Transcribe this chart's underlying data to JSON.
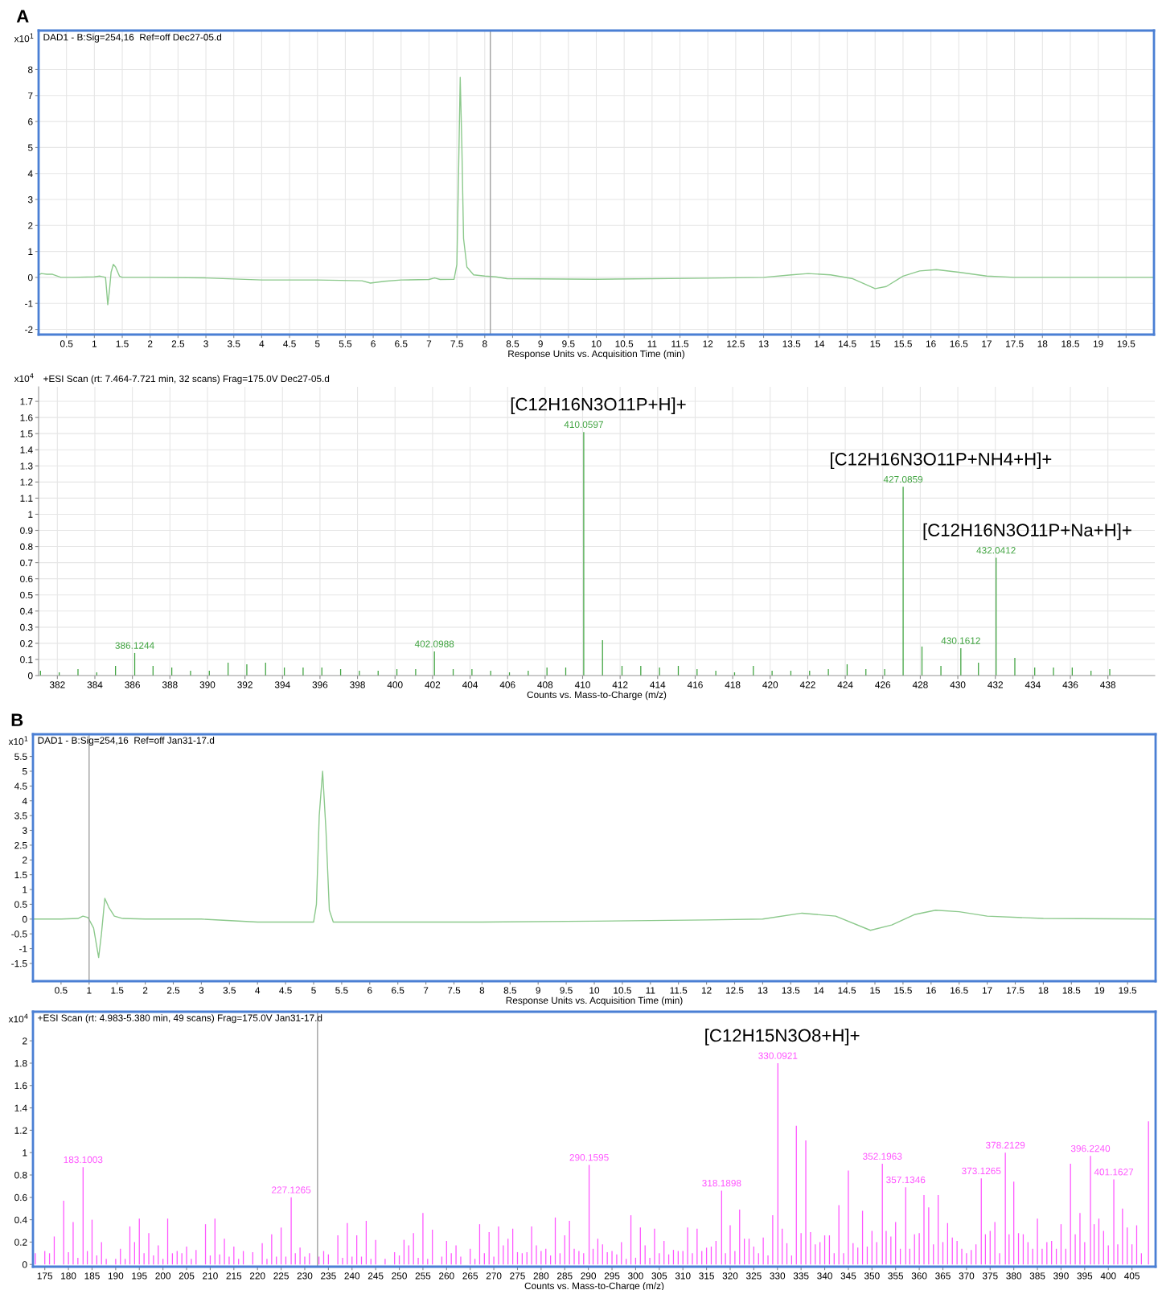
{
  "chart_data": [
    {
      "type": "line",
      "title": "DAD1 - B:Sig=254,16  Ref=off Dec27-05.d",
      "xlabel": "Response Units vs. Acquisition Time (min)",
      "ylabel": "x10$^{1}$",
      "annotations": [
        "A"
      ],
      "series": [
        {
          "color": "#8cc98c",
          "x": [
            0,
            0.05,
            0.15,
            0.25,
            0.4,
            0.6,
            1.0,
            1.1,
            1.2,
            1.22,
            1.24,
            1.27,
            1.3,
            1.34,
            1.38,
            1.45,
            1.5,
            2,
            3,
            4,
            5,
            5.8,
            5.95,
            6.2,
            6.5,
            7.0,
            7.1,
            7.2,
            7.45,
            7.5,
            7.53,
            7.56,
            7.59,
            7.62,
            7.68,
            7.8,
            8.0,
            8.2,
            8.4,
            10,
            12,
            13,
            13.5,
            13.8,
            14.2,
            14.6,
            15,
            15.2,
            15.5,
            15.8,
            16.1,
            16.5,
            17,
            17.5,
            20
          ],
          "values": [
            0.1,
            0.15,
            0.12,
            0.12,
            0.0,
            0.0,
            0.02,
            0.05,
            0.0,
            -0.5,
            -1.05,
            -0.5,
            0.2,
            0.5,
            0.4,
            0.05,
            0.0,
            0.0,
            -0.02,
            -0.1,
            -0.1,
            -0.13,
            -0.22,
            -0.15,
            -0.1,
            -0.08,
            -0.02,
            -0.08,
            -0.07,
            0.5,
            4,
            7.7,
            5,
            1.5,
            0.4,
            0.1,
            0.05,
            0.02,
            -0.05,
            -0.07,
            -0.03,
            0.0,
            0.1,
            0.15,
            0.1,
            -0.05,
            -0.43,
            -0.35,
            0.05,
            0.25,
            0.3,
            0.2,
            0.05,
            0.0,
            0.0
          ]
        }
      ],
      "xlim": [
        0,
        20
      ],
      "ylim": [
        -2.2,
        9.5
      ],
      "xticks": [
        0.5,
        1,
        1.5,
        2,
        2.5,
        3,
        3.5,
        4,
        4.5,
        5,
        5.5,
        6,
        6.5,
        7,
        7.5,
        8,
        8.5,
        9,
        9.5,
        10,
        10.5,
        11,
        11.5,
        12,
        12.5,
        13,
        13.5,
        14,
        14.5,
        15,
        15.5,
        16,
        16.5,
        17,
        17.5,
        18,
        18.5,
        19,
        19.5
      ],
      "yticks": [
        -2,
        -1,
        0,
        1,
        2,
        3,
        4,
        5,
        6,
        7,
        8
      ],
      "grid": true,
      "ref_lines": [
        {
          "axis": "x",
          "value": 8.1,
          "color": "#a0a0a0"
        }
      ]
    },
    {
      "type": "bar",
      "title": "+ESI Scan (rt: 7.464-7.721 min, 32 scans) Frag=175.0V Dec27-05.d",
      "xlabel": "Counts vs. Mass-to-Charge (m/z)",
      "ylabel": "x10$^{4}$",
      "annotations": [
        {
          "text": "386.1244",
          "x": 386.1244,
          "y": 0.14
        },
        {
          "text": "402.0988",
          "x": 402.0988,
          "y": 0.15
        },
        {
          "text": "410.0597",
          "x": 410.0597,
          "y": 1.51
        },
        {
          "text": "[C12H16N3O11P+H]+",
          "x": 410.0597,
          "y": 1.51
        },
        {
          "text": "427.0859",
          "x": 427.0859,
          "y": 1.17
        },
        {
          "text": "[C12H16N3O11P+NH4+H]+",
          "x": 427.0859,
          "y": 1.17
        },
        {
          "text": "430.1612",
          "x": 430.1612,
          "y": 0.17
        },
        {
          "text": "432.0412",
          "x": 432.0412,
          "y": 0.73
        },
        {
          "text": "[C12H16N3O11P+Na+H]+",
          "x": 432.0412,
          "y": 0.73
        }
      ],
      "series": [
        {
          "color": "#3fa33f",
          "x": [
            381.1,
            382.1,
            383.1,
            384.1,
            385.1,
            386.1244,
            387.1,
            388.1,
            389.1,
            390.1,
            391.1,
            392.1,
            393.1,
            394.1,
            395.1,
            396.1,
            397.1,
            398.1,
            399.1,
            400.1,
            401.1,
            402.0988,
            403.1,
            404.1,
            405.1,
            406.1,
            407.1,
            408.1,
            409.1,
            410.0597,
            411.06,
            412.1,
            413.1,
            414.1,
            415.1,
            416.1,
            417.1,
            418.1,
            419.1,
            420.1,
            421.1,
            422.1,
            423.1,
            424.1,
            425.1,
            426.1,
            427.0859,
            428.09,
            429.1,
            430.1612,
            431.1,
            432.0412,
            433.04,
            434.1,
            435.1,
            436.1,
            437.1,
            438.1
          ],
          "values": [
            0.03,
            0.02,
            0.04,
            0.02,
            0.06,
            0.14,
            0.06,
            0.05,
            0.03,
            0.03,
            0.08,
            0.07,
            0.08,
            0.05,
            0.05,
            0.05,
            0.04,
            0.03,
            0.03,
            0.04,
            0.04,
            0.15,
            0.04,
            0.04,
            0.03,
            0.02,
            0.03,
            0.05,
            0.05,
            1.51,
            0.22,
            0.06,
            0.06,
            0.05,
            0.06,
            0.04,
            0.03,
            0.02,
            0.06,
            0.03,
            0.03,
            0.03,
            0.04,
            0.07,
            0.04,
            0.04,
            1.17,
            0.18,
            0.06,
            0.17,
            0.08,
            0.73,
            0.11,
            0.05,
            0.05,
            0.05,
            0.03,
            0.04
          ]
        }
      ],
      "xlim": [
        381.0,
        440.5
      ],
      "ylim": [
        0,
        1.79
      ],
      "xticks": [
        382,
        384,
        386,
        388,
        390,
        392,
        394,
        396,
        398,
        400,
        402,
        404,
        406,
        408,
        410,
        412,
        414,
        416,
        418,
        420,
        422,
        424,
        426,
        428,
        430,
        432,
        434,
        436,
        438
      ],
      "yticks": [
        0,
        0.1,
        0.2,
        0.3,
        0.4,
        0.5,
        0.6,
        0.7,
        0.8,
        0.9,
        1,
        1.1,
        1.2,
        1.3,
        1.4,
        1.5,
        1.6,
        1.7
      ],
      "grid": true
    },
    {
      "type": "line",
      "title": "DAD1 - B:Sig=254,16  Ref=off Jan31-17.d",
      "xlabel": "Response Units vs. Acquisition Time (min)",
      "ylabel": "x10$^{1}$",
      "annotations": [
        "B"
      ],
      "series": [
        {
          "color": "#8cc98c",
          "x": [
            0,
            0.5,
            0.8,
            0.89,
            0.98,
            1.08,
            1.17,
            1.22,
            1.28,
            1.35,
            1.45,
            1.6,
            2,
            3,
            4,
            5,
            5.05,
            5.1,
            5.16,
            5.22,
            5.28,
            5.35,
            6,
            8,
            10,
            12,
            13,
            13.7,
            14.3,
            14.92,
            15.3,
            15.7,
            16.08,
            16.5,
            17,
            18,
            20
          ],
          "values": [
            0,
            0,
            0.02,
            0.1,
            0.05,
            -0.3,
            -1.3,
            -0.5,
            0.7,
            0.4,
            0.1,
            0.02,
            0.0,
            0.0,
            -0.1,
            -0.1,
            0.5,
            3.5,
            5.0,
            3.0,
            0.3,
            -0.1,
            -0.1,
            -0.1,
            -0.07,
            -0.03,
            0.0,
            0.2,
            0.1,
            -0.38,
            -0.2,
            0.15,
            0.3,
            0.25,
            0.1,
            0.02,
            0.0
          ]
        }
      ],
      "xlim": [
        0,
        20
      ],
      "ylim": [
        -2.1,
        6.25
      ],
      "xticks": [
        0.5,
        1,
        1.5,
        2,
        2.5,
        3,
        3.5,
        4,
        4.5,
        5,
        5.5,
        6,
        6.5,
        7,
        7.5,
        8,
        8.5,
        9,
        9.5,
        10,
        10.5,
        11,
        11.5,
        12,
        12.5,
        13,
        13.5,
        14,
        14.5,
        15,
        15.5,
        16,
        16.5,
        17,
        17.5,
        18,
        18.5,
        19,
        19.5
      ],
      "yticks": [
        -1.5,
        -1,
        -0.5,
        0,
        0.5,
        1,
        1.5,
        2,
        2.5,
        3,
        3.5,
        4,
        4.5,
        5,
        5.5
      ],
      "ref_lines": [
        {
          "axis": "x",
          "value": 1.0,
          "color": "#a0a0a0"
        }
      ]
    },
    {
      "type": "bar",
      "title": "+ESI Scan (rt: 4.983-5.380 min, 49 scans) Frag=175.0V Jan31-17.d",
      "xlabel": "Counts vs. Mass-to-Charge (m/z)",
      "ylabel": "x10$^{4}$",
      "annotations": [
        {
          "text": "183.1003",
          "x": 183.1003,
          "y": 0.87
        },
        {
          "text": "227.1265",
          "x": 227.1265,
          "y": 0.6
        },
        {
          "text": "290.1595",
          "x": 290.1595,
          "y": 0.89
        },
        {
          "text": "318.1898",
          "x": 318.1898,
          "y": 0.66
        },
        {
          "text": "330.0921",
          "x": 330.0921,
          "y": 1.8
        },
        {
          "text": "[C12H15N3O8+H]+",
          "x": 330.0921,
          "y": 1.8
        },
        {
          "text": "352.1963",
          "x": 352.1963,
          "y": 0.9
        },
        {
          "text": "357.1346",
          "x": 357.1346,
          "y": 0.69
        },
        {
          "text": "373.1265",
          "x": 373.1265,
          "y": 0.77
        },
        {
          "text": "378.2129",
          "x": 378.2129,
          "y": 1.0
        },
        {
          "text": "396.2240",
          "x": 396.224,
          "y": 0.97
        },
        {
          "text": "401.1627",
          "x": 401.1627,
          "y": 0.76
        }
      ],
      "series": [
        {
          "color": "#ff55ff",
          "x": [
            173,
            175,
            176,
            177,
            179,
            180,
            181,
            182,
            183.1003,
            184,
            185,
            186,
            187,
            188,
            190,
            191,
            192,
            193,
            194,
            195,
            196,
            197,
            198,
            199,
            200,
            201,
            202,
            203,
            204,
            205,
            206,
            207,
            209,
            210,
            211,
            212,
            213,
            214,
            215,
            216,
            217,
            219,
            221,
            222,
            223,
            224,
            225,
            226,
            227.1265,
            228,
            229,
            230,
            231,
            233,
            234,
            235,
            237,
            238,
            239,
            240,
            241,
            242,
            243,
            244,
            245,
            247,
            249,
            250,
            251,
            252,
            253,
            254,
            255,
            256,
            257,
            259,
            260,
            261,
            262,
            263,
            265,
            266,
            267,
            268,
            269,
            270,
            271,
            272,
            273,
            274,
            275,
            276,
            277,
            278,
            279,
            280,
            281,
            282,
            283,
            284,
            285,
            286,
            287,
            288,
            289,
            290.1595,
            291,
            292,
            293,
            294,
            295,
            296,
            297,
            298,
            299,
            300,
            301,
            302,
            303,
            304,
            305,
            306,
            307,
            308,
            309,
            310,
            311,
            312,
            313,
            314,
            315,
            316,
            317,
            318.1898,
            319,
            320,
            321,
            322,
            323,
            324,
            325,
            326,
            327,
            328,
            329,
            330.0921,
            331,
            332,
            333,
            334,
            335,
            336,
            337,
            338,
            339,
            340,
            341,
            342,
            343,
            344,
            345,
            346,
            347,
            348,
            349,
            350,
            351,
            352.1963,
            353,
            354,
            355,
            356,
            357.1346,
            358,
            359,
            360,
            361,
            362,
            363,
            364,
            365,
            366,
            367,
            368,
            369,
            370,
            371,
            372,
            373.1265,
            374,
            375,
            376,
            377,
            378.2129,
            379,
            380,
            381,
            382,
            383,
            384,
            385,
            386,
            387,
            388,
            389,
            390,
            391,
            392,
            393,
            394,
            395,
            396.224,
            397,
            398,
            399,
            400,
            401.1627,
            402,
            403,
            404,
            405,
            406,
            407,
            408.5
          ],
          "values": [
            0.1,
            0.12,
            0.1,
            0.25,
            0.57,
            0.11,
            0.38,
            0.06,
            0.87,
            0.12,
            0.4,
            0.08,
            0.2,
            0.05,
            0.05,
            0.14,
            0.05,
            0.34,
            0.2,
            0.41,
            0.1,
            0.28,
            0.08,
            0.17,
            0.05,
            0.41,
            0.1,
            0.12,
            0.1,
            0.16,
            0.05,
            0.13,
            0.36,
            0.08,
            0.41,
            0.09,
            0.23,
            0.07,
            0.16,
            0.05,
            0.12,
            0.11,
            0.19,
            0.05,
            0.27,
            0.07,
            0.33,
            0.07,
            0.6,
            0.1,
            0.15,
            0.07,
            0.1,
            0.07,
            0.12,
            0.09,
            0.26,
            0.06,
            0.37,
            0.07,
            0.26,
            0.07,
            0.39,
            0.05,
            0.22,
            0.05,
            0.11,
            0.08,
            0.22,
            0.17,
            0.28,
            0.06,
            0.46,
            0.05,
            0.31,
            0.07,
            0.21,
            0.1,
            0.17,
            0.07,
            0.14,
            0.05,
            0.36,
            0.1,
            0.29,
            0.07,
            0.34,
            0.17,
            0.23,
            0.32,
            0.11,
            0.1,
            0.11,
            0.34,
            0.17,
            0.12,
            0.14,
            0.08,
            0.42,
            0.1,
            0.26,
            0.39,
            0.14,
            0.12,
            0.1,
            0.89,
            0.14,
            0.23,
            0.18,
            0.11,
            0.12,
            0.09,
            0.2,
            0.05,
            0.44,
            0.06,
            0.33,
            0.17,
            0.06,
            0.32,
            0.1,
            0.21,
            0.09,
            0.13,
            0.12,
            0.12,
            0.33,
            0.1,
            0.32,
            0.12,
            0.15,
            0.16,
            0.21,
            0.66,
            0.1,
            0.35,
            0.12,
            0.49,
            0.23,
            0.23,
            0.16,
            0.1,
            0.24,
            0.08,
            0.44,
            1.8,
            0.32,
            0.19,
            0.08,
            1.24,
            0.28,
            1.11,
            0.29,
            0.18,
            0.2,
            0.26,
            0.26,
            0.1,
            0.53,
            0.1,
            0.84,
            0.19,
            0.15,
            0.48,
            0.16,
            0.3,
            0.2,
            0.9,
            0.3,
            0.25,
            0.38,
            0.14,
            0.69,
            0.14,
            0.27,
            0.28,
            0.62,
            0.51,
            0.18,
            0.62,
            0.2,
            0.37,
            0.24,
            0.21,
            0.14,
            0.1,
            0.13,
            0.18,
            0.77,
            0.27,
            0.3,
            0.38,
            0.1,
            1.0,
            0.27,
            0.74,
            0.28,
            0.27,
            0.2,
            0.14,
            0.41,
            0.14,
            0.2,
            0.21,
            0.14,
            0.36,
            0.14,
            0.9,
            0.27,
            0.46,
            0.2,
            0.97,
            0.36,
            0.41,
            0.3,
            0.17,
            0.76,
            0.18,
            0.5,
            0.33,
            0.18,
            0.35,
            0.1,
            1.28
          ]
        }
      ],
      "xlim": [
        172.5,
        410
      ],
      "ylim": [
        -0.02,
        2.26
      ],
      "xticks": [
        175,
        180,
        185,
        190,
        195,
        200,
        205,
        210,
        215,
        220,
        225,
        230,
        235,
        240,
        245,
        250,
        255,
        260,
        265,
        270,
        275,
        280,
        285,
        290,
        295,
        300,
        305,
        310,
        315,
        320,
        325,
        330,
        335,
        340,
        345,
        350,
        355,
        360,
        365,
        370,
        375,
        380,
        385,
        390,
        395,
        400,
        405
      ],
      "yticks": [
        0,
        0.2,
        0.4,
        0.6,
        0.8,
        1,
        1.2,
        1.4,
        1.6,
        1.8,
        2
      ],
      "ref_lines": [
        {
          "axis": "x",
          "value": 232.7,
          "color": "#a0a0a0"
        }
      ]
    }
  ]
}
